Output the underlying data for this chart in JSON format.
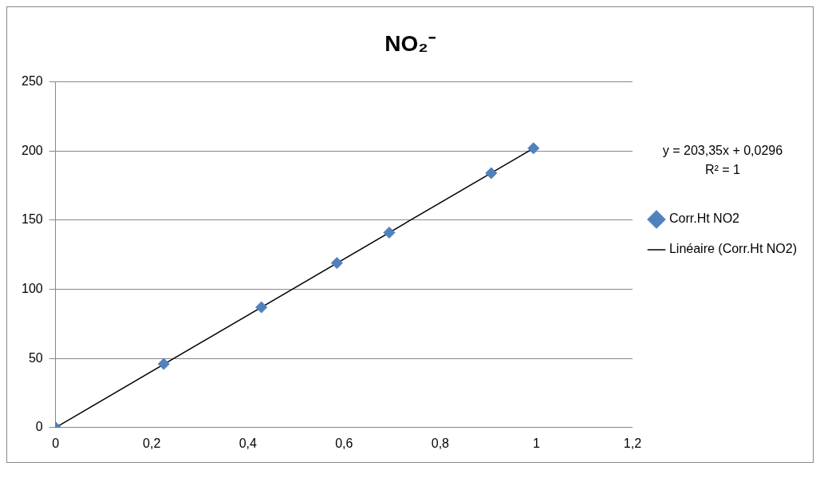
{
  "chart_data": {
    "type": "scatter",
    "title": "NO₂⁻",
    "x": [
      0,
      0.225,
      0.428,
      0.585,
      0.694,
      0.906,
      0.994
    ],
    "series": [
      {
        "name": "Corr.Ht NO2",
        "color": "#4f81bd",
        "marker": "diamond",
        "values": [
          0,
          46,
          87,
          119,
          141,
          184,
          202
        ]
      },
      {
        "name": "Linéaire (Corr.Ht NO2)",
        "type": "line",
        "color": "#000000",
        "marker": "none",
        "x": [
          0,
          0.994
        ],
        "values": [
          0,
          202
        ]
      }
    ],
    "xlim": [
      0,
      1.2
    ],
    "xticks": [
      0,
      {
        "value": 0.2,
        "label": "0,2"
      },
      {
        "value": 0.4,
        "label": "0,4"
      },
      {
        "value": 0.6,
        "label": "0,6"
      },
      {
        "value": 0.8,
        "label": "0,8"
      },
      1,
      {
        "value": 1.2,
        "label": "1,2"
      }
    ],
    "ylim": [
      0,
      250
    ],
    "yticks": [
      0,
      50,
      100,
      150,
      200,
      250
    ],
    "grid": "y",
    "legend": "right",
    "annotations": [
      "y = 203,35x + 0,0296",
      "R² = 1"
    ]
  }
}
